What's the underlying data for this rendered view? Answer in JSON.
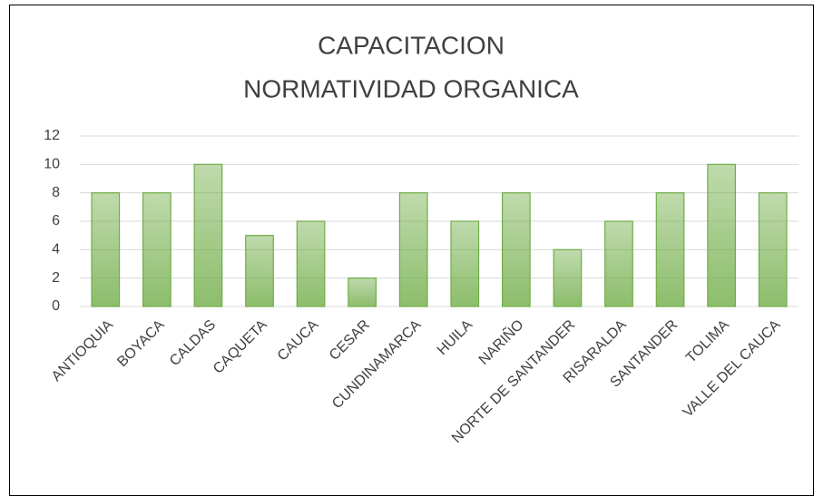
{
  "chart_data": {
    "type": "bar",
    "title": [
      "CAPACITACION",
      "NORMATIVIDAD ORGANICA"
    ],
    "categories": [
      "ANTIOQUIA",
      "BOYACA",
      "CALDAS",
      "CAQUETA",
      "CAUCA",
      "CESAR",
      "CUNDINAMARCA",
      "HUILA",
      "NARIÑO",
      "NORTE DE SANTANDER",
      "RISARALDA",
      "SANTANDER",
      "TOLIMA",
      "VALLE DEL CAUCA"
    ],
    "values": [
      8,
      8,
      10,
      5,
      6,
      2,
      8,
      6,
      8,
      4,
      6,
      8,
      10,
      8
    ],
    "color": "#70ad47",
    "ylim": [
      0,
      12
    ],
    "yticks": [
      0,
      2,
      4,
      6,
      8,
      10,
      12
    ],
    "grid": true
  }
}
